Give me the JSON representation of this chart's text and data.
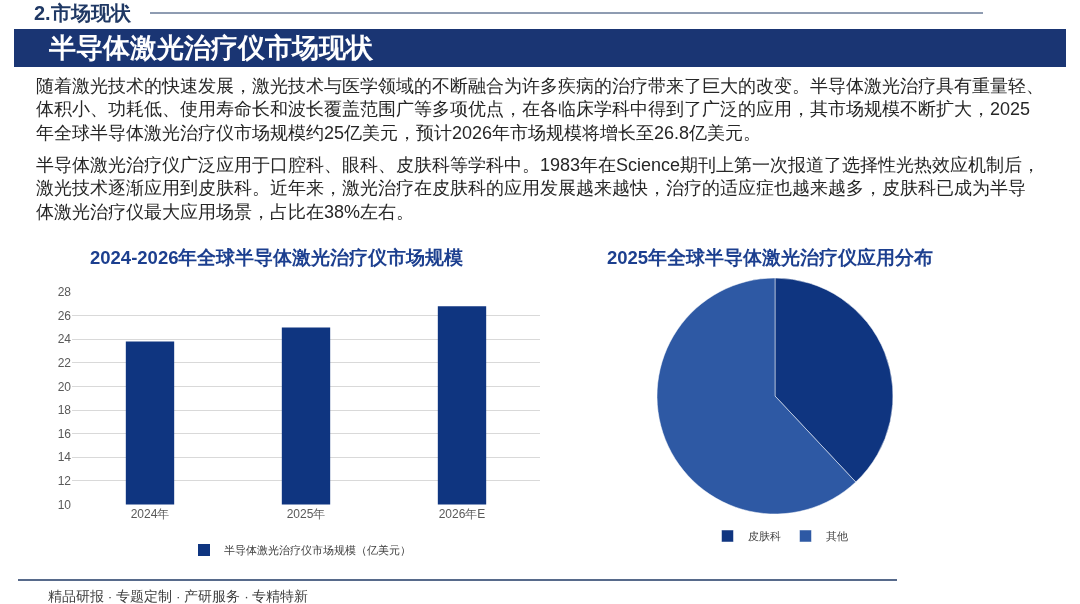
{
  "chart_data": [
    {
      "type": "other",
      "title": "半导体激光治疗仪市场现状",
      "annotations": [
        "2.市场现状",
        "随着激光技术的快速发展，激光技术与医学领域的不断融合为许多疾病的治疗带来了巨大的改变。半导体激光治疗具有重量轻、体积小、功耗低、使用寿命长和波长覆盖范围广等多项优点，在各临床学科中得到了广泛的应用，其市场规模不断扩大，2025年全球半导体激光治疗仪市场规模约25亿美元，预计2026年市场规模将增长至26.8亿美元。",
        "半导体激光治疗仪广泛应用于口腔科、眼科、皮肤科等学科中。1983年在Science期刊上第一次报道了选择性光热效应机制后，激光技术逐渐应用到皮肤科。近年来，激光治疗在皮肤科的应用发展越来越快，治疗的适应症也越来越多，皮肤科已成为半导体激光治疗仪最大应用场景，占比在38%左右。",
        "精品研报 · 专题定制 · 产研服务 · 专精特新"
      ]
    },
    {
      "type": "bar",
      "title": "2024-2026年全球半导体激光治疗仪市场规模",
      "categories": [
        "2024年",
        "2025年",
        "2026年E"
      ],
      "series": [
        {
          "name": "半导体激光治疗仪市场规模（亿美元）",
          "color": "#0f3580",
          "values": [
            23.8,
            25,
            26.8
          ]
        }
      ],
      "ylim": [
        10,
        28
      ],
      "yticks": [
        10,
        12,
        14,
        16,
        18,
        20,
        22,
        24,
        26,
        28
      ],
      "grid": "y",
      "legend": "bottom"
    },
    {
      "type": "pie",
      "title": "2025年全球半导体激光治疗仪应用分布",
      "categories": [
        "皮肤科",
        "其他"
      ],
      "values": [
        38,
        62
      ],
      "colors": [
        "#0f3580",
        "#2e59a4"
      ],
      "legend": "bottom"
    }
  ]
}
